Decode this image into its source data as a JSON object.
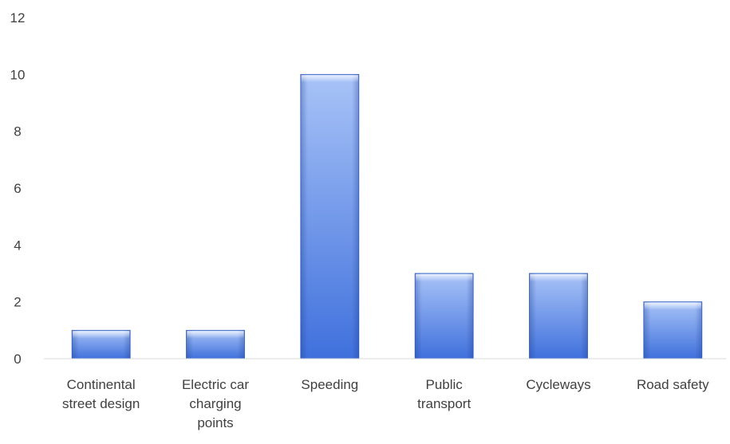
{
  "chart_data": {
    "type": "bar",
    "title": "",
    "xlabel": "",
    "ylabel": "",
    "categories": [
      [
        "Continental",
        "street design"
      ],
      [
        "Electric car",
        "charging",
        "points"
      ],
      [
        "Speeding"
      ],
      [
        "Public",
        "transport"
      ],
      [
        "Cycleways"
      ],
      [
        "Road safety"
      ]
    ],
    "values": [
      1,
      1,
      10,
      3,
      3,
      2
    ],
    "ylim": [
      0,
      12
    ],
    "yticks": [
      0,
      2,
      4,
      6,
      8,
      10,
      12
    ],
    "grid": false,
    "legend": "none",
    "colors": {
      "bar_light": "#a8c3f7",
      "bar_dark": "#3f70dc",
      "axis": "#d9d9d9",
      "text": "#404040"
    }
  }
}
